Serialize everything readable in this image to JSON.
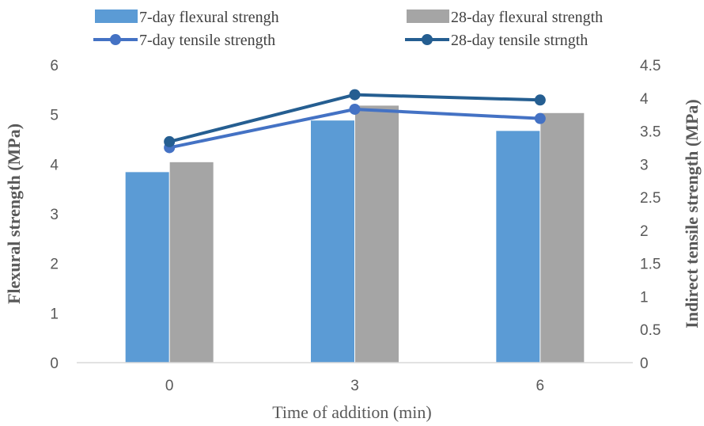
{
  "chart_data": {
    "type": "bar",
    "categories": [
      "0",
      "3",
      "6"
    ],
    "xlabel": "Time of addition (min)",
    "ylabel": "Flexural strength (MPa)",
    "y2label": "Indirect tensile strength (MPa)",
    "ylim": [
      0,
      6
    ],
    "y2lim": [
      0,
      4.5
    ],
    "yticks": [
      "0",
      "1",
      "2",
      "3",
      "4",
      "5",
      "6"
    ],
    "y2ticks": [
      "0",
      "0.5",
      "1",
      "1.5",
      "2",
      "2.5",
      "3",
      "3.5",
      "4",
      "4.5"
    ],
    "legend_position": "top",
    "bar_series": [
      {
        "name": "7-day flexural strengh",
        "values": [
          3.84,
          4.88,
          4.67
        ],
        "color": "#5B9BD5"
      },
      {
        "name": "28-day flexural strength",
        "values": [
          4.04,
          5.18,
          5.03
        ],
        "color": "#A5A5A5"
      }
    ],
    "line_series": [
      {
        "name": "7-day tensile strength",
        "values": [
          3.25,
          3.83,
          3.69
        ],
        "color": "#4472C4",
        "axis": "right"
      },
      {
        "name": "28-day tensile strngth",
        "values": [
          3.34,
          4.05,
          3.97
        ],
        "color": "#255E91",
        "axis": "right"
      }
    ]
  }
}
